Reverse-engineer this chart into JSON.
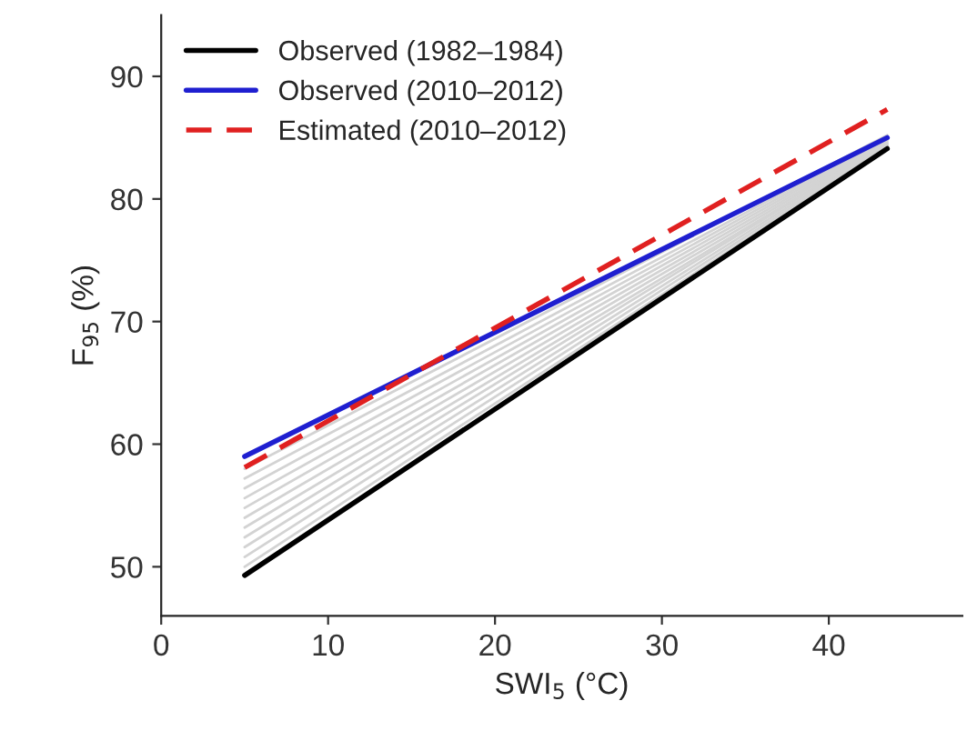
{
  "chart_data": {
    "type": "line",
    "xlabel": "SWI$_{5}$ (°C)",
    "ylabel": "F$_{95}$ (%)",
    "x": [
      5,
      43.5
    ],
    "series": [
      {
        "color": "#d3d3d3",
        "values": [
          50.0,
          84.2
        ]
      },
      {
        "color": "#d3d3d3",
        "values": [
          50.8,
          84.3
        ]
      },
      {
        "color": "#d3d3d3",
        "values": [
          51.6,
          84.4
        ]
      },
      {
        "color": "#d3d3d3",
        "values": [
          52.4,
          84.5
        ]
      },
      {
        "color": "#d3d3d3",
        "values": [
          53.2,
          84.5
        ]
      },
      {
        "color": "#d3d3d3",
        "values": [
          54.0,
          84.6
        ]
      },
      {
        "color": "#d3d3d3",
        "values": [
          54.8,
          84.7
        ]
      },
      {
        "color": "#d3d3d3",
        "values": [
          55.6,
          84.8
        ]
      },
      {
        "color": "#d3d3d3",
        "values": [
          56.4,
          84.9
        ]
      },
      {
        "color": "#d3d3d3",
        "values": [
          57.2,
          85.0
        ]
      },
      {
        "color": "#d3d3d3",
        "values": [
          58.0,
          85.2
        ]
      },
      {
        "name": "Observed (1982–1984)",
        "color": "#000000",
        "values": [
          49.3,
          84.1
        ]
      },
      {
        "name": "Observed (2010–2012)",
        "color": "#1f1fd0",
        "values": [
          59.0,
          85.0
        ]
      },
      {
        "name": "Estimated (2010–2012)",
        "color": "#e02020",
        "values": [
          58.1,
          87.3
        ],
        "line_style": "dashed"
      }
    ],
    "xlim": [
      0,
      48
    ],
    "xticks": [
      0,
      10,
      20,
      30,
      40
    ],
    "ylim": [
      46,
      95
    ],
    "yticks": [
      50,
      60,
      70,
      80,
      90
    ],
    "legend": "top left",
    "grid": false
  }
}
